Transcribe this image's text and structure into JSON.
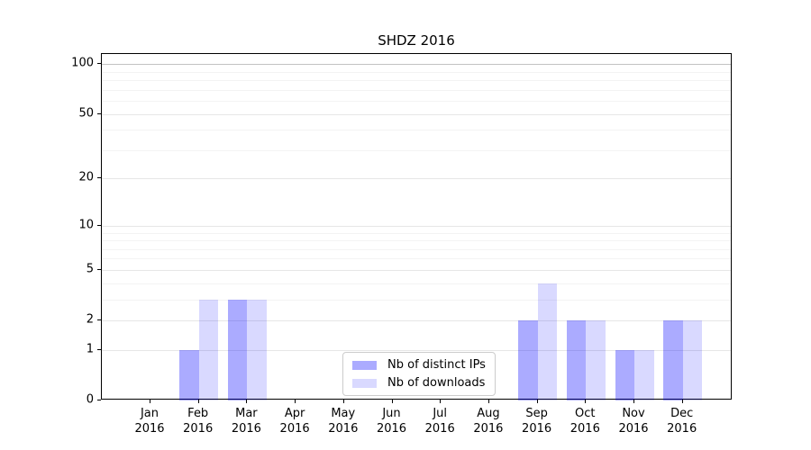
{
  "chart_data": {
    "type": "bar",
    "title": "SHDZ 2016",
    "categories": [
      "Jan",
      "Feb",
      "Mar",
      "Apr",
      "May",
      "Jun",
      "Jul",
      "Aug",
      "Sep",
      "Oct",
      "Nov",
      "Dec"
    ],
    "year_label": "2016",
    "series": [
      {
        "name": "Nb of distinct IPs",
        "color": "rgba(0,0,255,0.33)",
        "color_hex": "#aaaaf8",
        "values": [
          0,
          1,
          3,
          0,
          0,
          0,
          0,
          0,
          2,
          2,
          1,
          2
        ]
      },
      {
        "name": "Nb of downloads",
        "color": "rgba(0,0,255,0.15)",
        "color_hex": "#d9d9fb",
        "values": [
          0,
          3,
          3,
          0,
          0,
          0,
          0,
          0,
          4,
          2,
          1,
          2
        ]
      }
    ],
    "xlabel": "",
    "ylabel": "",
    "yscale": "log1p",
    "ylim": [
      0,
      115
    ],
    "yticks": [
      0,
      1,
      2,
      5,
      10,
      20,
      50,
      100
    ],
    "yticks_minor": [
      3,
      4,
      6,
      7,
      8,
      9,
      30,
      40,
      60,
      70,
      80,
      90
    ],
    "grid": "horizontal major+minor",
    "legend_position": "lower center"
  },
  "colors": {
    "background": "#ffffff",
    "axis": "#000000",
    "grid_major": "#e6e6e6",
    "grid_minor": "#f3f3f3",
    "grid_top": "#c2c2c2",
    "legend_border": "#cccccc"
  }
}
